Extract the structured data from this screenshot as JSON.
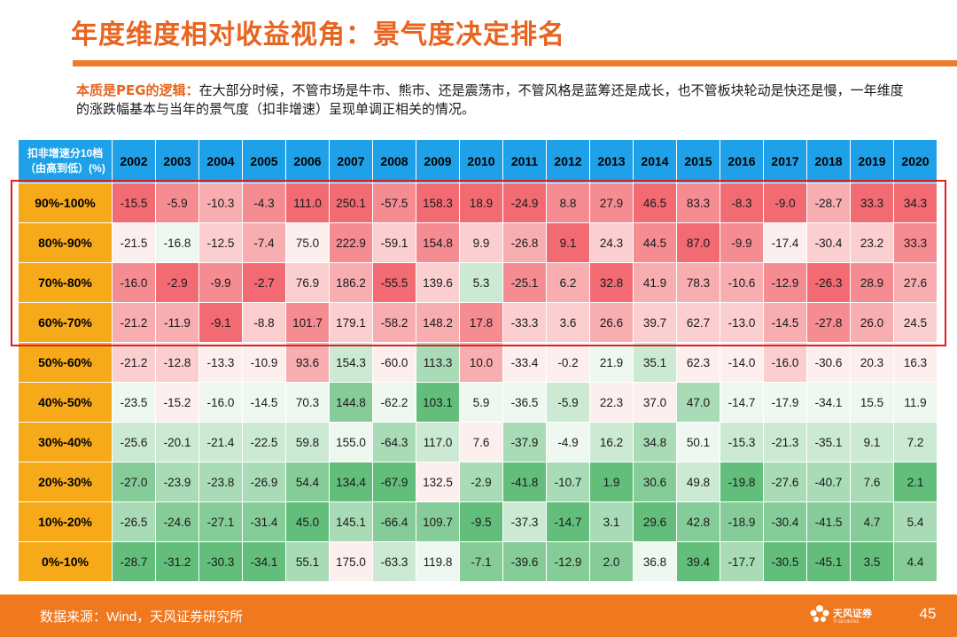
{
  "title": "年度维度相对收益视角：景气度决定排名",
  "description": {
    "lead": "本质是PEG的逻辑：",
    "text": "在大部分时候，不管市场是牛市、熊市、还是震荡市，不管风格是蓝筹还是成长，也不管板块轮动是快还是慢，一年维度的涨跌幅基本与当年的景气度（扣非增速）呈现单调正相关的情况。"
  },
  "table": {
    "corner_line1": "扣非增速分10档",
    "corner_line2": "（由高到低）(%)",
    "years": [
      "2002",
      "2003",
      "2004",
      "2005",
      "2006",
      "2007",
      "2008",
      "2009",
      "2010",
      "2011",
      "2012",
      "2013",
      "2014",
      "2015",
      "2016",
      "2017",
      "2018",
      "2019",
      "2020"
    ],
    "rows": [
      {
        "label": "90%-100%",
        "values": [
          "-15.5",
          "-5.9",
          "-10.3",
          "-4.3",
          "111.0",
          "250.1",
          "-57.5",
          "158.3",
          "18.9",
          "-24.9",
          "8.8",
          "27.9",
          "46.5",
          "83.3",
          "-8.3",
          "-9.0",
          "-28.7",
          "33.3",
          "34.3"
        ]
      },
      {
        "label": "80%-90%",
        "values": [
          "-21.5",
          "-16.8",
          "-12.5",
          "-7.4",
          "75.0",
          "222.9",
          "-59.1",
          "154.8",
          "9.9",
          "-26.8",
          "9.1",
          "24.3",
          "44.5",
          "87.0",
          "-9.9",
          "-17.4",
          "-30.4",
          "23.2",
          "33.3"
        ]
      },
      {
        "label": "70%-80%",
        "values": [
          "-16.0",
          "-2.9",
          "-9.9",
          "-2.7",
          "76.9",
          "186.2",
          "-55.5",
          "139.6",
          "5.3",
          "-25.1",
          "6.2",
          "32.8",
          "41.9",
          "78.3",
          "-10.6",
          "-12.9",
          "-26.3",
          "28.9",
          "27.6"
        ]
      },
      {
        "label": "60%-70%",
        "values": [
          "-21.2",
          "-11.9",
          "-9.1",
          "-8.8",
          "101.7",
          "179.1",
          "-58.2",
          "148.2",
          "17.8",
          "-33.3",
          "3.6",
          "26.6",
          "39.7",
          "62.7",
          "-13.0",
          "-14.5",
          "-27.8",
          "26.0",
          "24.5"
        ]
      },
      {
        "label": "50%-60%",
        "values": [
          "-21.2",
          "-12.8",
          "-13.3",
          "-10.9",
          "93.6",
          "154.3",
          "-60.0",
          "113.3",
          "10.0",
          "-33.4",
          "-0.2",
          "21.9",
          "35.1",
          "62.3",
          "-14.0",
          "-16.0",
          "-30.6",
          "20.3",
          "16.3"
        ]
      },
      {
        "label": "40%-50%",
        "values": [
          "-23.5",
          "-15.2",
          "-16.0",
          "-14.5",
          "70.3",
          "144.8",
          "-62.2",
          "103.1",
          "5.9",
          "-36.5",
          "-5.9",
          "22.3",
          "37.0",
          "47.0",
          "-14.7",
          "-17.9",
          "-34.1",
          "15.5",
          "11.9"
        ]
      },
      {
        "label": "30%-40%",
        "values": [
          "-25.6",
          "-20.1",
          "-21.4",
          "-22.5",
          "59.8",
          "155.0",
          "-64.3",
          "117.0",
          "7.6",
          "-37.9",
          "-4.9",
          "16.2",
          "34.8",
          "50.1",
          "-15.3",
          "-21.3",
          "-35.1",
          "9.1",
          "7.2"
        ]
      },
      {
        "label": "20%-30%",
        "values": [
          "-27.0",
          "-23.9",
          "-23.8",
          "-26.9",
          "54.4",
          "134.4",
          "-67.9",
          "132.5",
          "-2.9",
          "-41.8",
          "-10.7",
          "1.9",
          "30.6",
          "49.8",
          "-19.8",
          "-27.6",
          "-40.7",
          "7.6",
          "2.1"
        ]
      },
      {
        "label": "10%-20%",
        "values": [
          "-26.5",
          "-24.6",
          "-27.1",
          "-31.4",
          "45.0",
          "145.1",
          "-66.4",
          "109.7",
          "-9.5",
          "-37.3",
          "-14.7",
          "3.1",
          "29.6",
          "42.8",
          "-18.9",
          "-30.4",
          "-41.5",
          "4.7",
          "5.4"
        ]
      },
      {
        "label": "0%-10%",
        "values": [
          "-28.7",
          "-31.2",
          "-30.3",
          "-34.1",
          "55.1",
          "175.0",
          "-63.3",
          "119.8",
          "-7.1",
          "-39.6",
          "-12.9",
          "2.0",
          "36.8",
          "39.4",
          "-17.7",
          "-30.5",
          "-45.1",
          "3.5",
          "4.4"
        ]
      }
    ],
    "colors": {
      "header_bg": "#1ea1e8",
      "rowlabel_bg": "#f6a919",
      "high": "#f26b73",
      "mid": "#ffffff",
      "low": "#63be7b",
      "highlight_border": "#e02020"
    }
  },
  "footer": {
    "source": "数据来源：Wind，天风证券研究所",
    "logo_text": "天风证券",
    "logo_sub": "TF SECURITIES",
    "page_number": "45",
    "bg": "#f0791f"
  },
  "accent": "#e8641f"
}
